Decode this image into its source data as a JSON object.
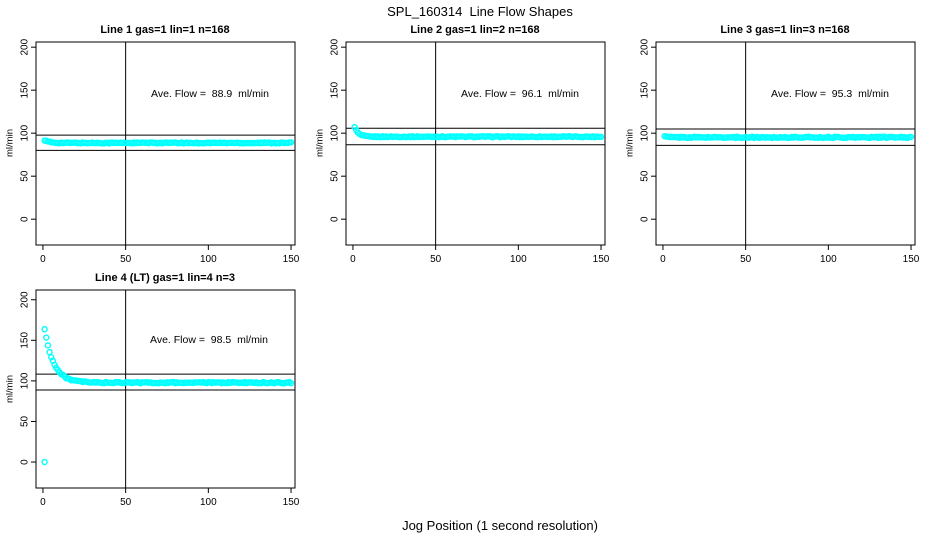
{
  "page": {
    "title": "SPL_160314  Line Flow Shapes",
    "xlabel": "Jog Position (1 second resolution)",
    "background_color": "#ffffff",
    "axis_color": "#000000",
    "point_color": "#00ffff"
  },
  "chart_data": [
    {
      "type": "scatter",
      "title": "Line 1 gas=1 lin=1 n=168",
      "annotation": "Ave. Flow =  88.9  ml/min",
      "ave_flow_ml_min": 88.9,
      "ylabel": "ml/min",
      "xlim": [
        -4.2,
        152.4
      ],
      "ylim": [
        -30,
        206
      ],
      "x_ticks": [
        0,
        50,
        100,
        150
      ],
      "y_ticks": [
        0,
        50,
        100,
        150,
        200
      ],
      "ref_line_vertical_x": 50,
      "ref_lines_horizontal": [
        97.8,
        80.0
      ],
      "marker": "open-circle",
      "marker_color": "#00ffff",
      "series": {
        "name": "line-1-flow",
        "x_start": 1,
        "x_end": 150,
        "x_step": 1,
        "plateau": 88.7,
        "initial_value": 91.5,
        "decay_tau": 3.0,
        "noise_amplitude": 0.6,
        "outliers": []
      }
    },
    {
      "type": "scatter",
      "title": "Line 2 gas=1 lin=2 n=168",
      "annotation": "Ave. Flow =  96.1  ml/min",
      "ave_flow_ml_min": 96.1,
      "ylabel": "ml/min",
      "xlim": [
        -4.2,
        152.4
      ],
      "ylim": [
        -30,
        206
      ],
      "x_ticks": [
        0,
        50,
        100,
        150
      ],
      "y_ticks": [
        0,
        50,
        100,
        150,
        200
      ],
      "ref_line_vertical_x": 50,
      "ref_lines_horizontal": [
        105.7,
        86.5
      ],
      "marker": "open-circle",
      "marker_color": "#00ffff",
      "series": {
        "name": "line-2-flow",
        "x_start": 1,
        "x_end": 150,
        "x_step": 1,
        "plateau": 95.9,
        "initial_value": 107.5,
        "decay_tau": 2.2,
        "noise_amplitude": 0.6,
        "outliers": []
      }
    },
    {
      "type": "scatter",
      "title": "Line 3 gas=1 lin=3 n=168",
      "annotation": "Ave. Flow =  95.3  ml/min",
      "ave_flow_ml_min": 95.3,
      "ylabel": "ml/min",
      "xlim": [
        -4.2,
        152.4
      ],
      "ylim": [
        -30,
        206
      ],
      "x_ticks": [
        0,
        50,
        100,
        150
      ],
      "y_ticks": [
        0,
        50,
        100,
        150,
        200
      ],
      "ref_line_vertical_x": 50,
      "ref_lines_horizontal": [
        104.8,
        85.8
      ],
      "marker": "open-circle",
      "marker_color": "#00ffff",
      "series": {
        "name": "line-3-flow",
        "x_start": 1,
        "x_end": 150,
        "x_step": 1,
        "plateau": 95.2,
        "initial_value": 96.5,
        "decay_tau": 1.5,
        "noise_amplitude": 0.7,
        "outliers": []
      }
    },
    {
      "type": "scatter",
      "title": "Line 4 (LT) gas=1 lin=4 n=3",
      "annotation": "Ave. Flow =  98.5  ml/min",
      "ave_flow_ml_min": 98.5,
      "ylabel": "ml/min",
      "xlim": [
        -4.2,
        152.4
      ],
      "ylim": [
        -32,
        212
      ],
      "x_ticks": [
        0,
        50,
        100,
        150
      ],
      "y_ticks": [
        0,
        50,
        100,
        150,
        200
      ],
      "ref_line_vertical_x": 50,
      "ref_lines_horizontal": [
        108.4,
        88.7
      ],
      "marker": "open-circle",
      "marker_color": "#00ffff",
      "series": {
        "name": "line-4-flow",
        "x_start": 1,
        "x_end": 150,
        "x_step": 1,
        "plateau": 97.8,
        "initial_value": 164.0,
        "decay_tau": 5.5,
        "noise_amplitude": 0.8,
        "outliers": [
          [
            1,
            0
          ]
        ]
      }
    }
  ]
}
